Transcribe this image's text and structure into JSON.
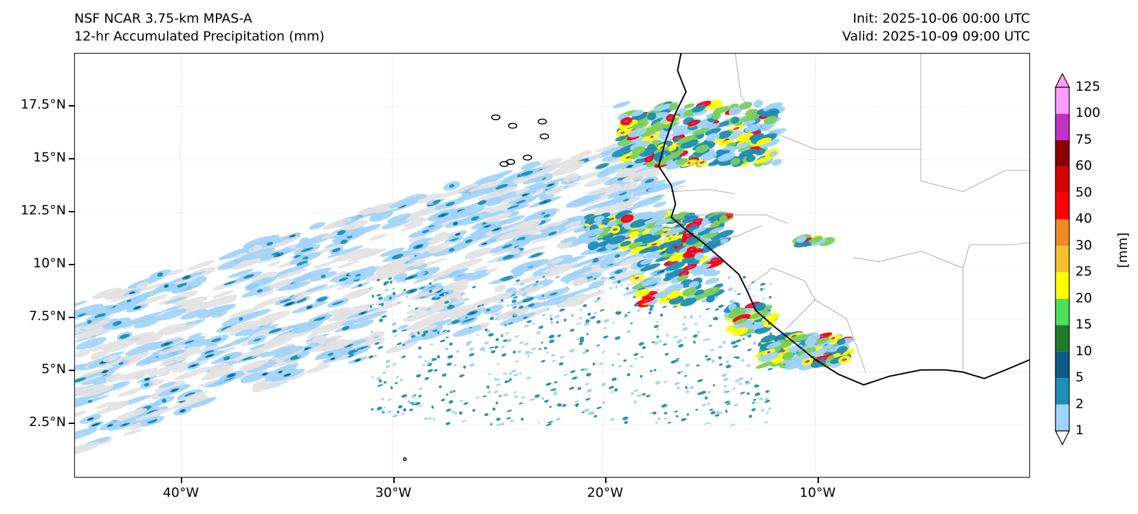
{
  "header": {
    "title_left_1": "NSF NCAR 3.75-km MPAS-A",
    "title_left_2": "12-hr Accumulated Precipitation (mm)",
    "title_right_1": "Init: 2025-10-06 00:00 UTC",
    "title_right_2": "Valid: 2025-10-09 09:00 UTC"
  },
  "axes": {
    "y_ticks": [
      "17.5°N",
      "15°N",
      "12.5°N",
      "10°N",
      "7.5°N",
      "5°N",
      "2.5°N"
    ],
    "x_ticks": [
      "40°W",
      "30°W",
      "20°W",
      "10°W"
    ],
    "lon_range": [
      -45,
      0.2
    ],
    "lat_range": [
      0,
      20
    ]
  },
  "colorbar": {
    "unit_label": "[mm]",
    "levels": [
      "1",
      "2",
      "5",
      "10",
      "15",
      "20",
      "25",
      "30",
      "40",
      "50",
      "60",
      "75",
      "100",
      "125"
    ],
    "colors": [
      "#ffffff",
      "#9fd3fb",
      "#1f8db5",
      "#0d5b8a",
      "#1f7a2a",
      "#4fe05a",
      "#ffff00",
      "#f5c030",
      "#f08a22",
      "#ff0000",
      "#d60000",
      "#8a0000",
      "#c032c8",
      "#ff9cff"
    ]
  },
  "map": {
    "background": "#ffffff",
    "coastline_color": "#000000",
    "border_color": "#9a9a9a",
    "gridline_color": "#c8c8c8"
  }
}
